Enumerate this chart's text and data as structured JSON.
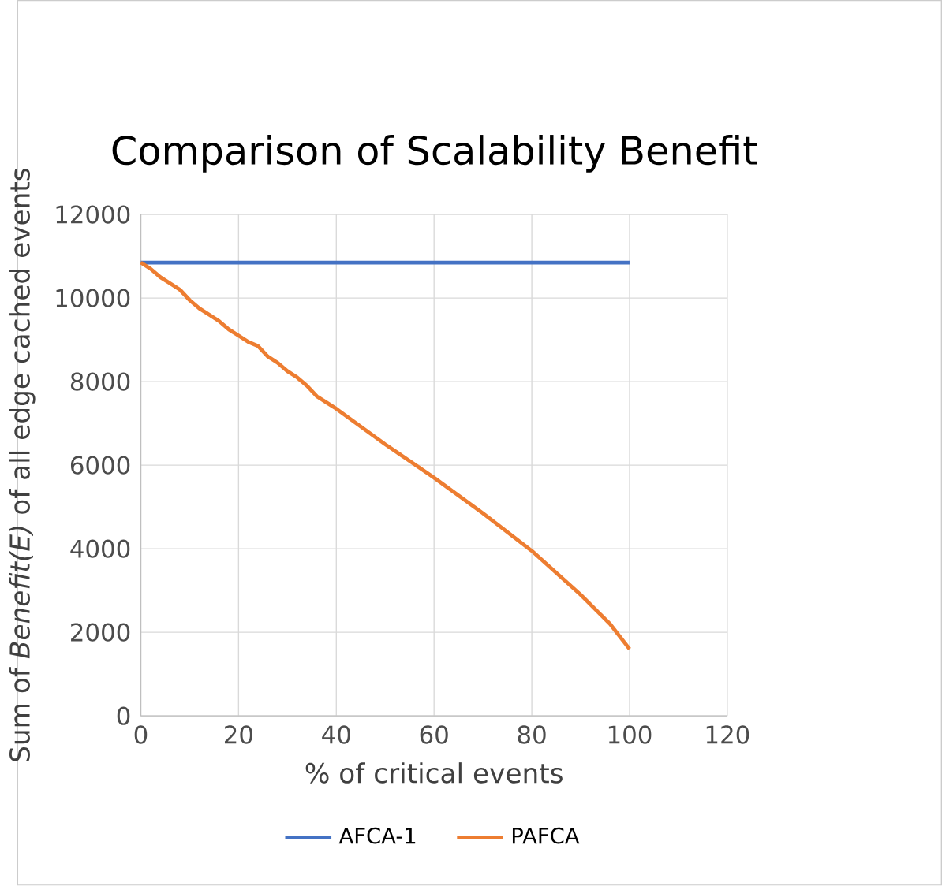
{
  "chart_data": {
    "type": "line",
    "title": "Comparison of Scalability Benefit",
    "xlabel": "% of critical events",
    "ylabel": "Sum of *Benefit(E)* of all edge cached events",
    "xlim": [
      0,
      120
    ],
    "xticks": [
      0,
      20,
      40,
      60,
      80,
      100,
      120
    ],
    "ylim": [
      0,
      12000
    ],
    "yticks": [
      0,
      2000,
      4000,
      6000,
      8000,
      10000,
      12000
    ],
    "grid": true,
    "legend": "bottom",
    "series": [
      {
        "name": "AFCA-1",
        "color": "#4472c4",
        "x": [
          0,
          100
        ],
        "values": [
          10850,
          10850
        ]
      },
      {
        "name": "PAFCA",
        "color": "#ed7d31",
        "x": [
          0,
          2,
          4,
          6,
          8,
          10,
          12,
          14,
          16,
          18,
          20,
          22,
          24,
          26,
          28,
          30,
          32,
          34,
          36,
          38,
          40,
          50,
          60,
          70,
          80,
          90,
          96,
          100
        ],
        "values": [
          10850,
          10700,
          10500,
          10350,
          10200,
          9950,
          9750,
          9600,
          9450,
          9250,
          9100,
          8950,
          8850,
          8600,
          8450,
          8250,
          8100,
          7900,
          7650,
          7500,
          7350,
          6500,
          5700,
          4850,
          3950,
          2900,
          2200,
          1600
        ]
      }
    ]
  }
}
